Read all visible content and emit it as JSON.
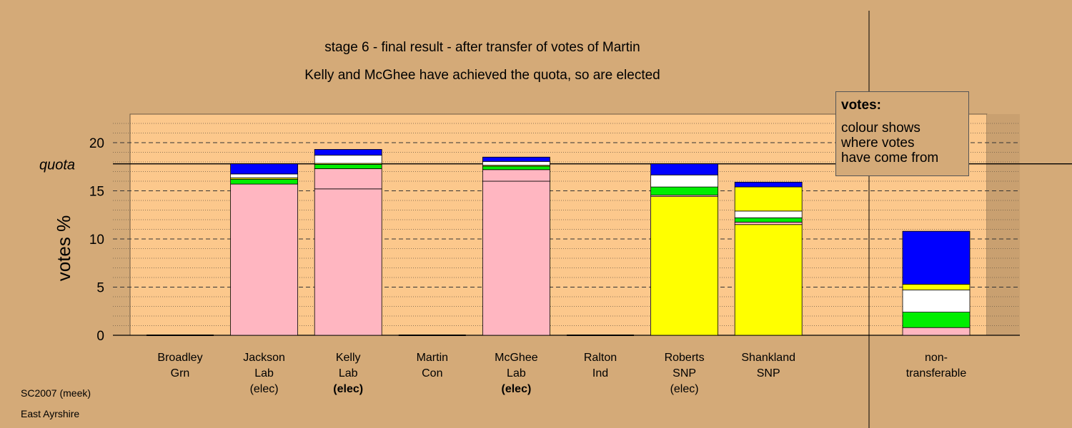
{
  "title_line1": "stage 6 - final result - after transfer of votes of Martin",
  "title_line2": "Kelly and McGhee have achieved the quota, so are elected",
  "ylabel": "votes %",
  "quota_label": "quota",
  "legend": {
    "title": "votes:",
    "lines": [
      "colour shows",
      "where votes",
      "have come from"
    ]
  },
  "footer": {
    "source": "SC2007 (meek)",
    "region": "East Ayrshire"
  },
  "colors": {
    "background": "#d4aa78",
    "plot_area": "#fcc88c",
    "Lab": "#ffb6c1",
    "SNP": "#ffff00",
    "Con": "#0000ff",
    "Ind": "#ffffff",
    "Grn": "#00ee00"
  },
  "chart_data": {
    "type": "bar",
    "stacked": true,
    "ylim": [
      0,
      23
    ],
    "yticks": [
      0,
      5,
      10,
      15,
      20
    ],
    "quota": 17.8,
    "grid": "dashed horizontal lines",
    "legend_position": "top-right",
    "candidates": [
      {
        "name": "Broadley",
        "party": "Grn",
        "status": "",
        "segments": []
      },
      {
        "name": "Jackson",
        "party": "Lab",
        "status": "(elec)",
        "segments": [
          {
            "source": "Lab",
            "value": 15.7
          },
          {
            "source": "Grn",
            "value": 0.5
          },
          {
            "source": "SNP",
            "value": 0.15
          },
          {
            "source": "Ind",
            "value": 0.4
          },
          {
            "source": "Con",
            "value": 1.05
          }
        ]
      },
      {
        "name": "Kelly",
        "party": "Lab",
        "status": "(elec)",
        "status_bold": true,
        "segments": [
          {
            "source": "Lab",
            "value": 15.2
          },
          {
            "source": "Lab",
            "value": 2.1
          },
          {
            "source": "Grn",
            "value": 0.45
          },
          {
            "source": "SNP",
            "value": 0.1
          },
          {
            "source": "Ind",
            "value": 0.85
          },
          {
            "source": "Con",
            "value": 0.6
          }
        ]
      },
      {
        "name": "Martin",
        "party": "Con",
        "status": "",
        "segments": []
      },
      {
        "name": "McGhee",
        "party": "Lab",
        "status": "(elec)",
        "status_bold": true,
        "segments": [
          {
            "source": "Lab",
            "value": 16.0
          },
          {
            "source": "Lab",
            "value": 1.2
          },
          {
            "source": "Grn",
            "value": 0.35
          },
          {
            "source": "SNP",
            "value": 0.1
          },
          {
            "source": "Ind",
            "value": 0.4
          },
          {
            "source": "Con",
            "value": 0.45
          }
        ]
      },
      {
        "name": "Ralton",
        "party": "Ind",
        "status": "",
        "segments": []
      },
      {
        "name": "Roberts",
        "party": "SNP",
        "status": "(elec)",
        "segments": [
          {
            "source": "SNP",
            "value": 14.4
          },
          {
            "source": "Lab",
            "value": 0.15
          },
          {
            "source": "Grn",
            "value": 0.85
          },
          {
            "source": "Ind",
            "value": 1.25
          },
          {
            "source": "Con",
            "value": 1.15
          }
        ]
      },
      {
        "name": "Shankland",
        "party": "SNP",
        "status": "",
        "segments": [
          {
            "source": "SNP",
            "value": 11.5
          },
          {
            "source": "Lab",
            "value": 0.25
          },
          {
            "source": "Grn",
            "value": 0.45
          },
          {
            "source": "Ind",
            "value": 0.7
          },
          {
            "source": "SNP",
            "value": 2.5
          },
          {
            "source": "Con",
            "value": 0.5
          }
        ]
      }
    ],
    "non_transferable": {
      "label_line1": "non-",
      "label_line2": "transferable",
      "segments": [
        {
          "source": "Lab",
          "value": 0.8
        },
        {
          "source": "Grn",
          "value": 1.6
        },
        {
          "source": "Ind",
          "value": 2.3
        },
        {
          "source": "SNP",
          "value": 0.6
        },
        {
          "source": "Con",
          "value": 5.5
        }
      ]
    }
  }
}
